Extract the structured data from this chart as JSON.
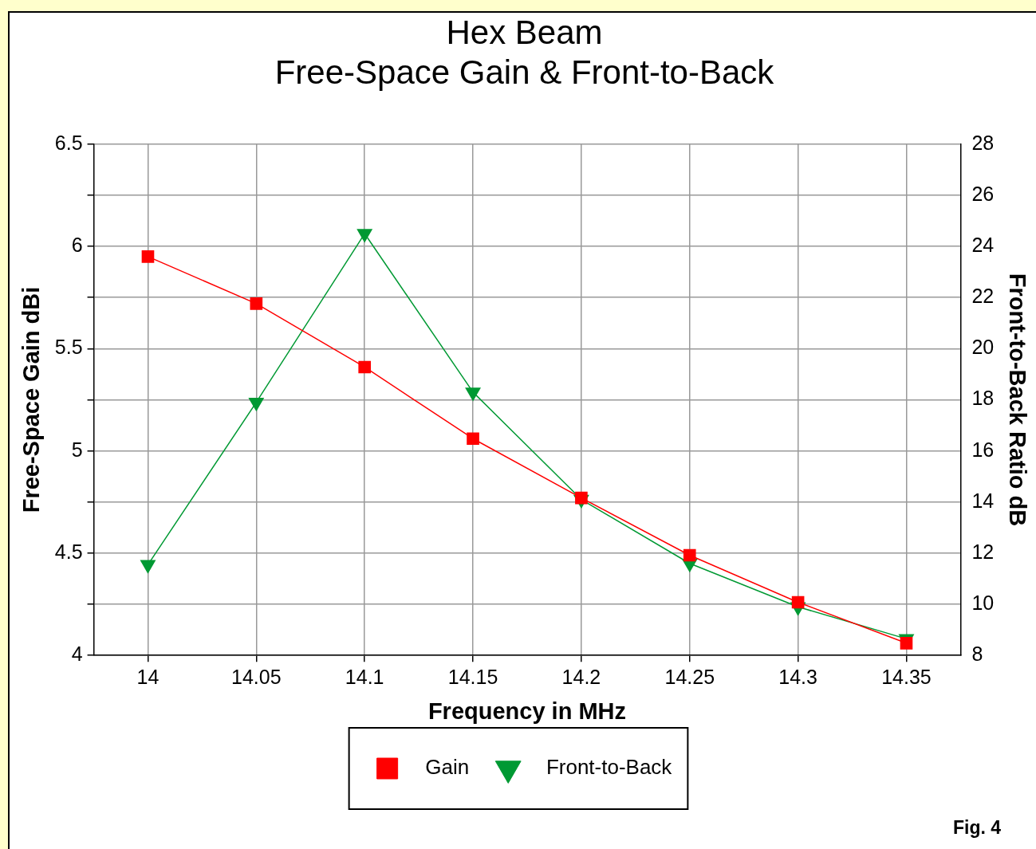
{
  "chart_data": {
    "type": "line",
    "title": [
      "Hex Beam",
      "Free-Space Gain & Front-to-Back"
    ],
    "xlabel": "Frequency in MHz",
    "ylabel": "Free-Space Gain dBi",
    "y2label": "Front-to-Back Ratio dB",
    "x": [
      14,
      14.05,
      14.1,
      14.15,
      14.2,
      14.25,
      14.3,
      14.35
    ],
    "series": [
      {
        "name": "Gain",
        "color": "#ff0000",
        "marker": "square",
        "values": [
          5.95,
          5.72,
          5.41,
          5.06,
          4.77,
          4.49,
          4.26,
          4.06
        ]
      },
      {
        "name": "Front-to-Back",
        "color": "#009933",
        "marker": "triangle",
        "axis": "y2",
        "values": [
          11.55,
          17.9,
          24.5,
          18.3,
          14.1,
          11.6,
          9.9,
          8.65
        ]
      }
    ],
    "xlim": [
      13.975,
      14.375
    ],
    "xticks": [
      14,
      14.05,
      14.1,
      14.15,
      14.2,
      14.25,
      14.3,
      14.35
    ],
    "ylim": [
      4,
      6.5
    ],
    "yticks": [
      4,
      {
        "value": 4.25,
        "label": null
      },
      4.5,
      {
        "value": 4.75,
        "label": null
      },
      5,
      {
        "value": 5.25,
        "label": null
      },
      5.5,
      {
        "value": 5.75,
        "label": null
      },
      6,
      {
        "value": 6.25,
        "label": null
      },
      6.5
    ],
    "y2lim": [
      8,
      28
    ],
    "y2ticks": [
      8,
      10,
      12,
      14,
      16,
      18,
      20,
      22,
      24,
      26,
      28
    ],
    "grid": true,
    "legend": "bottom",
    "line_style": "solid",
    "annotations": [
      "Fig. 4"
    ]
  }
}
